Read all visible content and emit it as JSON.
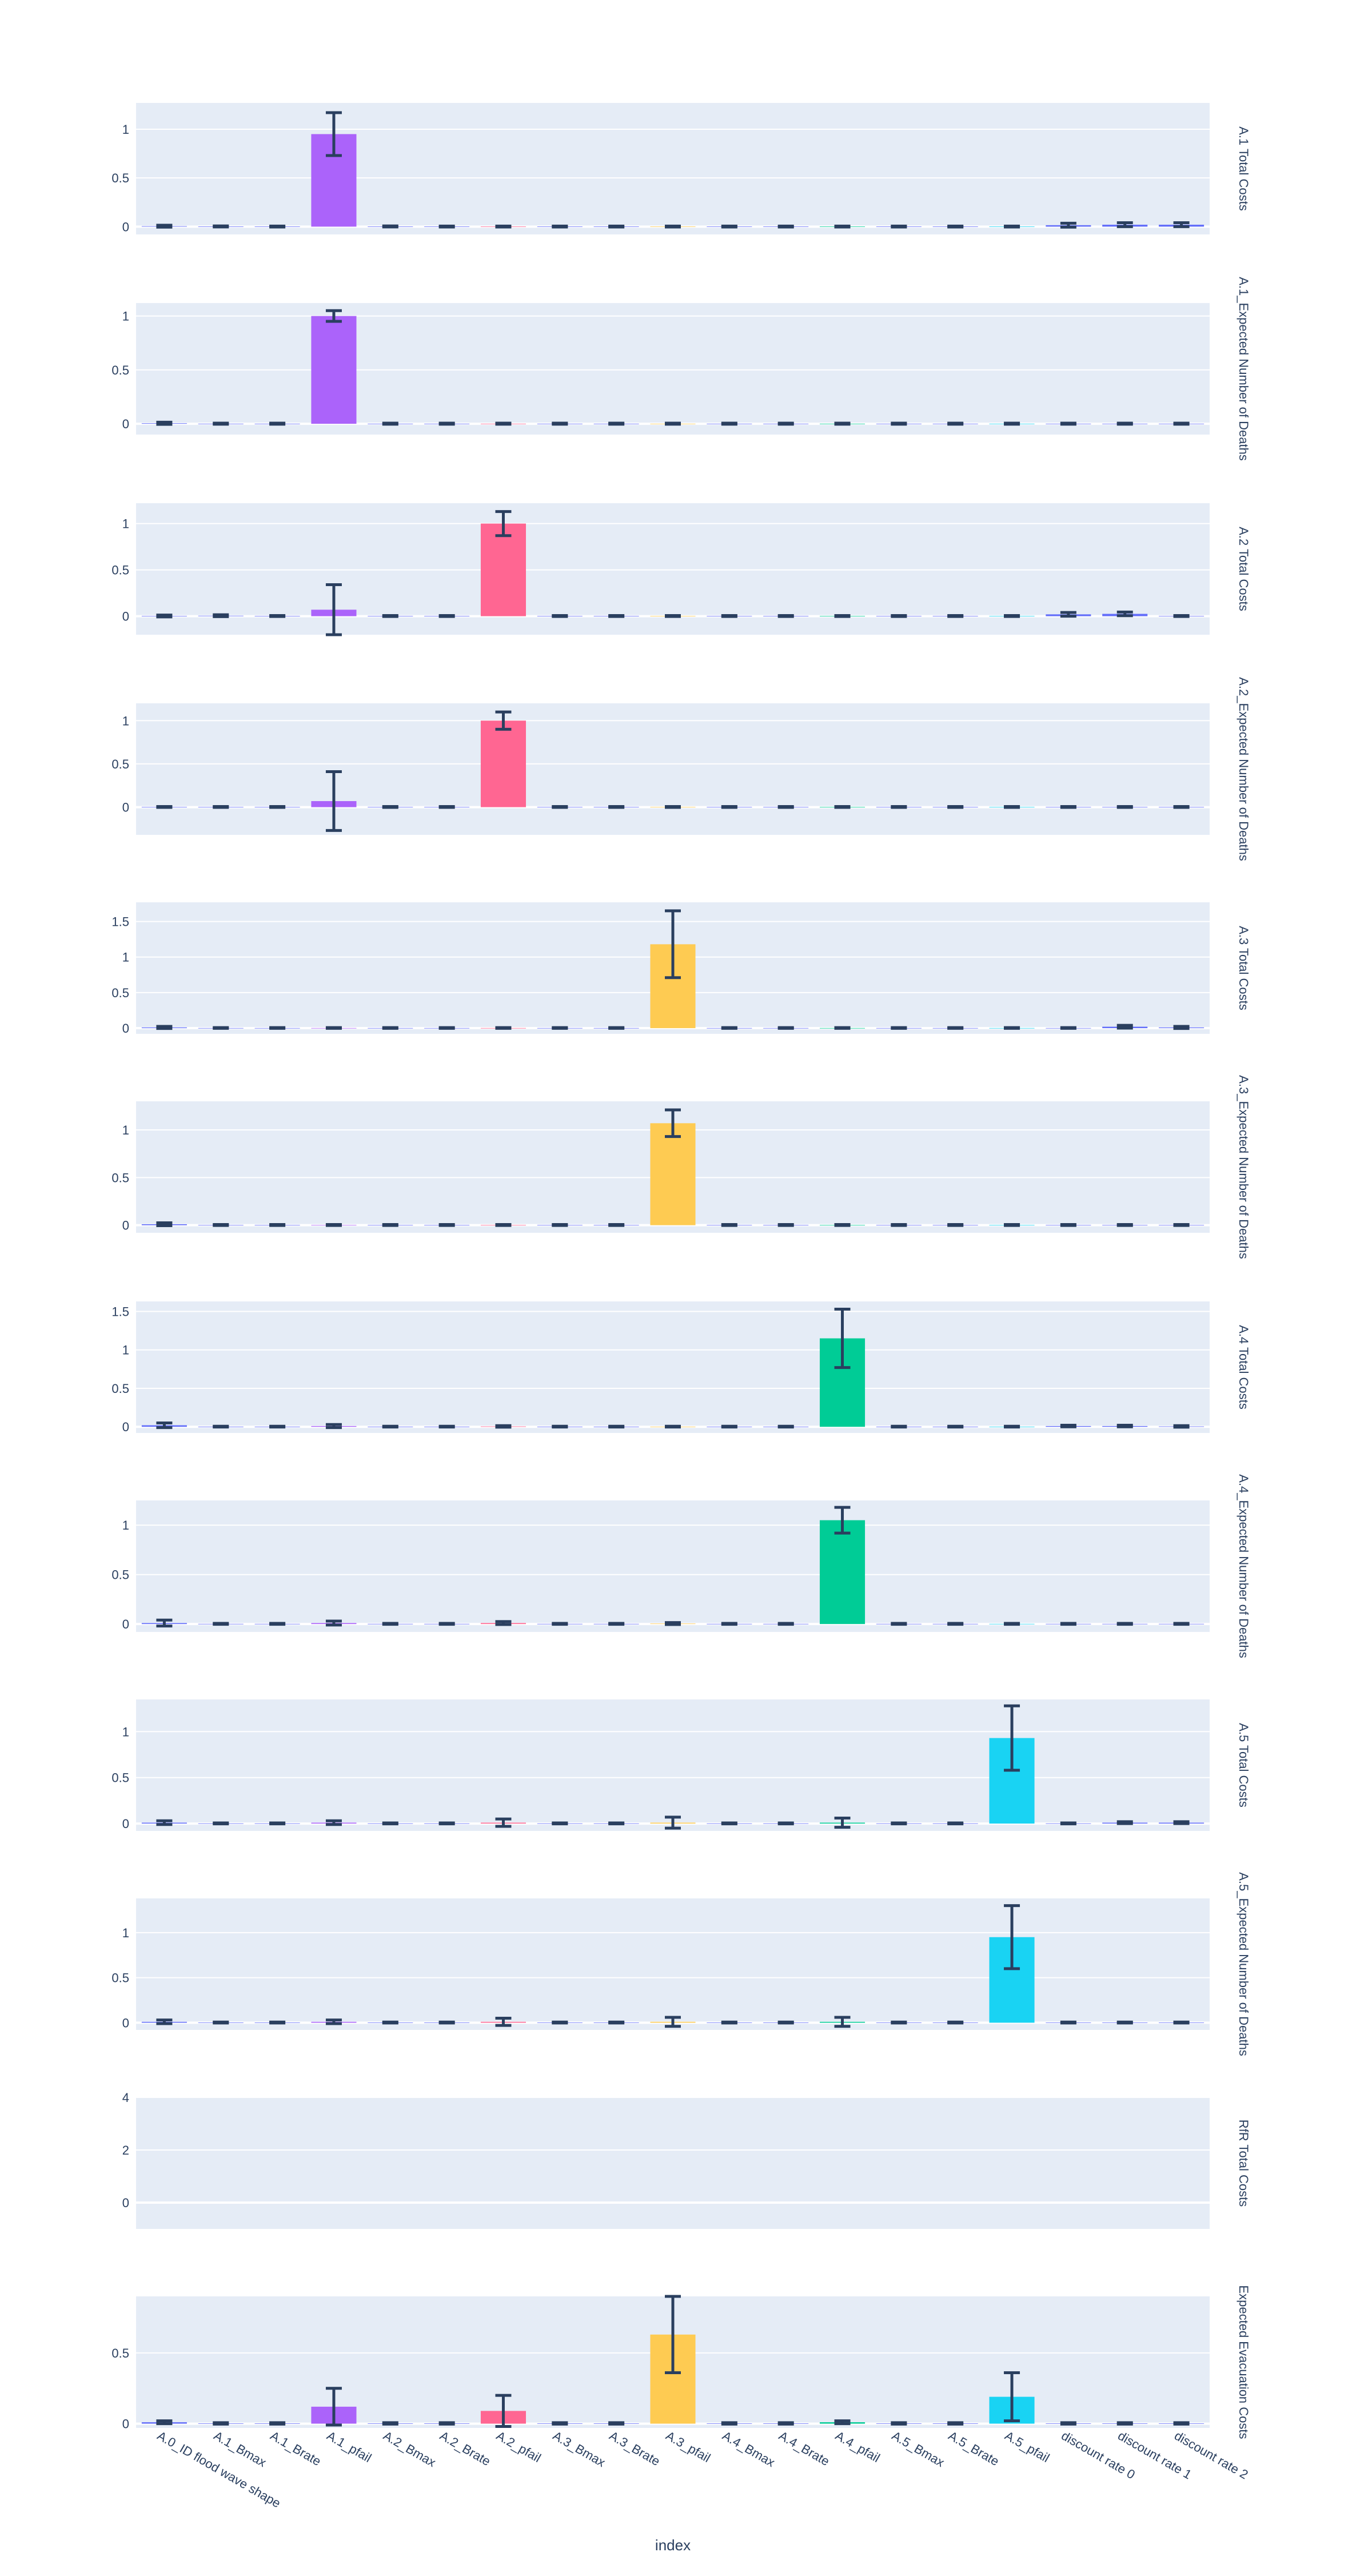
{
  "chart_data": {
    "type": "bar",
    "xlabel": "index",
    "categories": [
      "A.0_ID flood wave shape",
      "A.1_Bmax",
      "A.1_Brate",
      "A.1_pfail",
      "A.2_Bmax",
      "A.2_Brate",
      "A.2_pfail",
      "A.3_Bmax",
      "A.3_Brate",
      "A.3_pfail",
      "A.4_Bmax",
      "A.4_Brate",
      "A.4_pfail",
      "A.5_Bmax",
      "A.5_Brate",
      "A.5_pfail",
      "discount rate 0",
      "discount rate 1",
      "discount rate 2"
    ],
    "colors": {
      "A.1_pfail": "#ab63fa",
      "A.2_pfail": "#ff6692",
      "A.3_pfail": "#fecb52",
      "A.4_pfail": "#00cc96",
      "A.5_pfail": "#19d3f3",
      "other": "#636efa",
      "error_bar": "#2a3f5f",
      "plot_bg": "#e5ecf6",
      "grid": "#ffffff"
    },
    "panels": [
      {
        "ylabel": "A.1 Total Costs",
        "ylim": [
          -0.08,
          1.27
        ],
        "yticks": [
          0,
          0.5,
          1
        ],
        "ytick_labels": [
          "0",
          "0.5",
          "1"
        ],
        "values": [
          0.005,
          0.002,
          0.001,
          0.95,
          0.002,
          0.001,
          0.001,
          0.001,
          0.001,
          0.001,
          0.001,
          0.001,
          0.001,
          0.001,
          0.001,
          0.001,
          0.015,
          0.02,
          0.02
        ],
        "errors": [
          0.01,
          0.005,
          0.005,
          0.22,
          0.005,
          0.005,
          0.005,
          0.005,
          0.005,
          0.005,
          0.005,
          0.005,
          0.005,
          0.005,
          0.005,
          0.005,
          0.02,
          0.02,
          0.02
        ]
      },
      {
        "ylabel": "A.1_Expected Number of Deaths",
        "ylim": [
          -0.1,
          1.12
        ],
        "yticks": [
          0,
          0.5,
          1
        ],
        "ytick_labels": [
          "0",
          "0.5",
          "1"
        ],
        "values": [
          0.005,
          0.001,
          0.001,
          1.0,
          0.001,
          0.001,
          0.001,
          0.001,
          0.001,
          0.001,
          0.001,
          0.001,
          0.001,
          0.001,
          0.001,
          0.001,
          0.001,
          0.001,
          0.001
        ],
        "errors": [
          0.01,
          0.005,
          0.005,
          0.05,
          0.005,
          0.005,
          0.005,
          0.005,
          0.005,
          0.005,
          0.005,
          0.005,
          0.005,
          0.005,
          0.005,
          0.005,
          0.005,
          0.005,
          0.005
        ]
      },
      {
        "ylabel": "A.2 Total Costs",
        "ylim": [
          -0.2,
          1.22
        ],
        "yticks": [
          0,
          0.5,
          1
        ],
        "ytick_labels": [
          "0",
          "0.5",
          "1"
        ],
        "values": [
          0.002,
          0.005,
          0.002,
          0.07,
          0.002,
          0.002,
          1.0,
          0.002,
          0.002,
          0.002,
          0.002,
          0.002,
          0.002,
          0.002,
          0.002,
          0.002,
          0.02,
          0.025,
          0.002
        ],
        "errors": [
          0.01,
          0.01,
          0.005,
          0.27,
          0.005,
          0.005,
          0.13,
          0.005,
          0.005,
          0.005,
          0.005,
          0.005,
          0.005,
          0.005,
          0.005,
          0.005,
          0.02,
          0.02,
          0.005
        ]
      },
      {
        "ylabel": "A.2_Expected Number of Deaths",
        "ylim": [
          -0.32,
          1.2
        ],
        "yticks": [
          0,
          0.5,
          1
        ],
        "ytick_labels": [
          "0",
          "0.5",
          "1"
        ],
        "values": [
          0.002,
          0.002,
          0.002,
          0.07,
          0.002,
          0.002,
          1.0,
          0.002,
          0.002,
          0.002,
          0.002,
          0.002,
          0.002,
          0.002,
          0.002,
          0.002,
          0.002,
          0.002,
          0.002
        ],
        "errors": [
          0.005,
          0.005,
          0.005,
          0.34,
          0.005,
          0.005,
          0.1,
          0.005,
          0.005,
          0.005,
          0.005,
          0.005,
          0.005,
          0.005,
          0.005,
          0.005,
          0.005,
          0.005,
          0.005
        ]
      },
      {
        "ylabel": "A.3 Total Costs",
        "ylim": [
          -0.08,
          1.77
        ],
        "yticks": [
          0,
          0.5,
          1,
          1.5
        ],
        "ytick_labels": [
          "0",
          "0.5",
          "1",
          "1.5"
        ],
        "values": [
          0.01,
          0.002,
          0.002,
          0.002,
          0.002,
          0.002,
          0.002,
          0.002,
          0.002,
          1.18,
          0.002,
          0.002,
          0.002,
          0.002,
          0.002,
          0.002,
          0.002,
          0.02,
          0.01
        ],
        "errors": [
          0.015,
          0.005,
          0.005,
          0.005,
          0.005,
          0.005,
          0.005,
          0.005,
          0.005,
          0.47,
          0.005,
          0.005,
          0.005,
          0.005,
          0.005,
          0.005,
          0.005,
          0.02,
          0.015
        ]
      },
      {
        "ylabel": "A.3_Expected Number of Deaths",
        "ylim": [
          -0.08,
          1.3
        ],
        "yticks": [
          0,
          0.5,
          1
        ],
        "ytick_labels": [
          "0",
          "0.5",
          "1"
        ],
        "values": [
          0.01,
          0.002,
          0.002,
          0.002,
          0.002,
          0.002,
          0.002,
          0.002,
          0.002,
          1.07,
          0.002,
          0.002,
          0.002,
          0.002,
          0.002,
          0.002,
          0.002,
          0.002,
          0.002
        ],
        "errors": [
          0.015,
          0.005,
          0.005,
          0.005,
          0.005,
          0.005,
          0.005,
          0.005,
          0.005,
          0.14,
          0.005,
          0.005,
          0.005,
          0.005,
          0.005,
          0.005,
          0.005,
          0.005,
          0.005
        ]
      },
      {
        "ylabel": "A.4 Total Costs",
        "ylim": [
          -0.08,
          1.63
        ],
        "yticks": [
          0,
          0.5,
          1,
          1.5
        ],
        "ytick_labels": [
          "0",
          "0.5",
          "1",
          "1.5"
        ],
        "values": [
          0.02,
          0.002,
          0.002,
          0.01,
          0.002,
          0.002,
          0.005,
          0.002,
          0.002,
          0.002,
          0.002,
          0.002,
          1.15,
          0.002,
          0.002,
          0.002,
          0.01,
          0.01,
          0.005
        ],
        "errors": [
          0.03,
          0.005,
          0.005,
          0.02,
          0.005,
          0.005,
          0.01,
          0.005,
          0.005,
          0.005,
          0.005,
          0.005,
          0.38,
          0.005,
          0.005,
          0.005,
          0.01,
          0.01,
          0.01
        ]
      },
      {
        "ylabel": "A.4_Expected Number of Deaths",
        "ylim": [
          -0.08,
          1.25
        ],
        "yticks": [
          0,
          0.5,
          1
        ],
        "ytick_labels": [
          "0",
          "0.5",
          "1"
        ],
        "values": [
          0.01,
          0.002,
          0.002,
          0.01,
          0.002,
          0.002,
          0.01,
          0.002,
          0.002,
          0.005,
          0.002,
          0.002,
          1.05,
          0.002,
          0.002,
          0.002,
          0.002,
          0.002,
          0.002
        ],
        "errors": [
          0.03,
          0.005,
          0.005,
          0.02,
          0.005,
          0.005,
          0.015,
          0.005,
          0.005,
          0.01,
          0.005,
          0.005,
          0.13,
          0.005,
          0.005,
          0.005,
          0.005,
          0.005,
          0.005
        ]
      },
      {
        "ylabel": "A.5 Total Costs",
        "ylim": [
          -0.08,
          1.35
        ],
        "yticks": [
          0,
          0.5,
          1
        ],
        "ytick_labels": [
          "0",
          "0.5",
          "1"
        ],
        "values": [
          0.01,
          0.002,
          0.002,
          0.01,
          0.002,
          0.002,
          0.01,
          0.002,
          0.002,
          0.01,
          0.002,
          0.002,
          0.01,
          0.002,
          0.002,
          0.93,
          0.002,
          0.01,
          0.01
        ],
        "errors": [
          0.02,
          0.005,
          0.005,
          0.02,
          0.005,
          0.005,
          0.04,
          0.005,
          0.005,
          0.06,
          0.005,
          0.005,
          0.05,
          0.005,
          0.005,
          0.35,
          0.005,
          0.01,
          0.01
        ]
      },
      {
        "ylabel": "A.5_Expected Number of Deaths",
        "ylim": [
          -0.08,
          1.38
        ],
        "yticks": [
          0,
          0.5,
          1
        ],
        "ytick_labels": [
          "0",
          "0.5",
          "1"
        ],
        "values": [
          0.01,
          0.002,
          0.002,
          0.01,
          0.002,
          0.002,
          0.01,
          0.002,
          0.002,
          0.01,
          0.002,
          0.002,
          0.01,
          0.002,
          0.002,
          0.95,
          0.002,
          0.002,
          0.002
        ],
        "errors": [
          0.02,
          0.005,
          0.005,
          0.02,
          0.005,
          0.005,
          0.04,
          0.005,
          0.005,
          0.05,
          0.005,
          0.005,
          0.05,
          0.005,
          0.005,
          0.35,
          0.005,
          0.005,
          0.005
        ]
      },
      {
        "ylabel": "RfR Total Costs",
        "ylim": [
          -1.0,
          4.0
        ],
        "yticks": [
          0,
          2,
          4
        ],
        "ytick_labels": [
          "0",
          "2",
          "4"
        ],
        "values": [],
        "errors": []
      },
      {
        "ylabel": "Expected Evacuation Costs",
        "ylim": [
          -0.03,
          0.9
        ],
        "yticks": [
          0,
          0.5
        ],
        "ytick_labels": [
          "0",
          "0.5"
        ],
        "values": [
          0.01,
          0.002,
          0.002,
          0.12,
          0.002,
          0.002,
          0.09,
          0.002,
          0.002,
          0.63,
          0.002,
          0.002,
          0.01,
          0.002,
          0.002,
          0.19,
          0.002,
          0.002,
          0.002
        ],
        "errors": [
          0.01,
          0.005,
          0.005,
          0.13,
          0.005,
          0.005,
          0.11,
          0.005,
          0.005,
          0.27,
          0.005,
          0.005,
          0.01,
          0.005,
          0.005,
          0.17,
          0.005,
          0.005,
          0.005
        ]
      }
    ]
  }
}
